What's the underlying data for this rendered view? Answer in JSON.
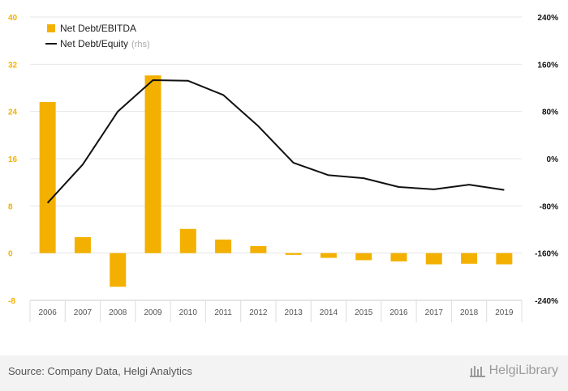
{
  "colors": {
    "bar": "#f4b000",
    "line": "#111111",
    "left_tick": "#f4b000",
    "right_tick": "#111111",
    "grid": "#e6e6e6",
    "category_text": "#555555",
    "rhs_note": "#aaaaaa"
  },
  "chart_data": {
    "type": "bar",
    "categories": [
      "2006",
      "2007",
      "2008",
      "2009",
      "2010",
      "2011",
      "2012",
      "2013",
      "2014",
      "2015",
      "2016",
      "2017",
      "2018",
      "2019"
    ],
    "series": [
      {
        "name": "Net Debt/EBITDA",
        "kind": "bar",
        "axis": "left",
        "values": [
          25.6,
          2.7,
          -5.7,
          30.1,
          4.1,
          2.3,
          1.2,
          -0.3,
          -0.8,
          -1.2,
          -1.4,
          -1.9,
          -1.8,
          -1.9
        ]
      },
      {
        "name": "Net Debt/Equity",
        "name_suffix": "(rhs)",
        "kind": "line",
        "axis": "right",
        "values": [
          -75,
          -10,
          80,
          133,
          132,
          108,
          55,
          -7,
          -28,
          -33,
          -48,
          -52,
          -44,
          -53
        ]
      }
    ],
    "left_axis": {
      "min": -8,
      "max": 40,
      "ticks": [
        "40",
        "32",
        "24",
        "16",
        "8",
        "0",
        "-8"
      ]
    },
    "right_axis": {
      "min": -240,
      "max": 240,
      "ticks": [
        "240%",
        "160%",
        "80%",
        "0%",
        "-80%",
        "-160%",
        "-240%"
      ]
    },
    "legend": {
      "position": "top-left",
      "items": [
        {
          "label": "Net Debt/EBITDA"
        },
        {
          "label": "Net Debt/Equity",
          "suffix": "(rhs)"
        }
      ]
    },
    "grid": true
  },
  "footer": {
    "source": "Source: Company Data, Helgi Analytics",
    "brand": "HelgiLibrary",
    "logo_icon": "helgi-library-logo-icon"
  }
}
